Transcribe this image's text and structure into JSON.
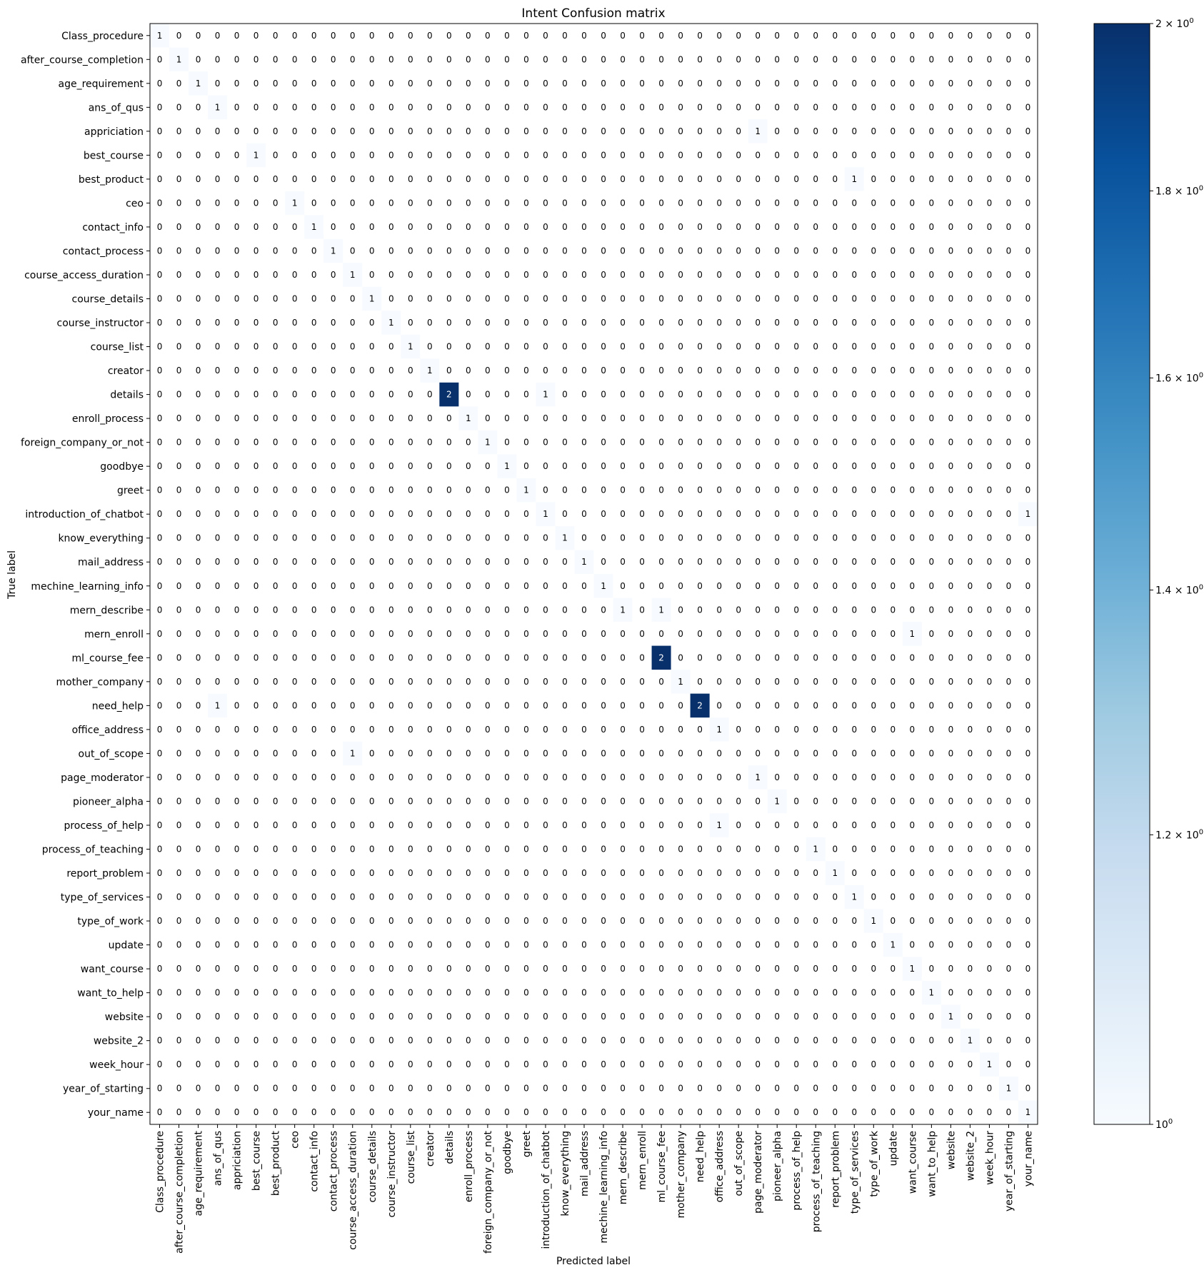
{
  "chart_data": {
    "type": "heatmap",
    "title": "Intent Confusion matrix",
    "xlabel": "Predicted label",
    "ylabel": "True label",
    "labels": [
      "Class_procedure",
      "after_course_completion",
      "age_requirement",
      "ans_of_qus",
      "appriciation",
      "best_course",
      "best_product",
      "ceo",
      "contact_info",
      "contact_process",
      "course_access_duration",
      "course_details",
      "course_instructor",
      "course_list",
      "creator",
      "details",
      "enroll_process",
      "foreign_company_or_not",
      "goodbye",
      "greet",
      "introduction_of_chatbot",
      "know_everything",
      "mail_address",
      "mechine_learning_info",
      "mern_describe",
      "mern_enroll",
      "ml_course_fee",
      "mother_company",
      "need_help",
      "office_address",
      "out_of_scope",
      "page_moderator",
      "pioneer_alpha",
      "process_of_help",
      "process_of_teaching",
      "report_problem",
      "type_of_services",
      "type_of_work",
      "update",
      "want_course",
      "want_to_help",
      "website",
      "website_2",
      "week_hour",
      "year_of_starting",
      "your_name"
    ],
    "nonzero_cells": [
      [
        0,
        0,
        1
      ],
      [
        1,
        1,
        1
      ],
      [
        2,
        2,
        1
      ],
      [
        3,
        3,
        1
      ],
      [
        4,
        31,
        1
      ],
      [
        5,
        5,
        1
      ],
      [
        6,
        36,
        1
      ],
      [
        7,
        7,
        1
      ],
      [
        8,
        8,
        1
      ],
      [
        9,
        9,
        1
      ],
      [
        10,
        10,
        1
      ],
      [
        11,
        11,
        1
      ],
      [
        12,
        12,
        1
      ],
      [
        13,
        13,
        1
      ],
      [
        14,
        14,
        1
      ],
      [
        15,
        15,
        2
      ],
      [
        15,
        20,
        1
      ],
      [
        16,
        16,
        1
      ],
      [
        17,
        17,
        1
      ],
      [
        18,
        18,
        1
      ],
      [
        19,
        19,
        1
      ],
      [
        20,
        20,
        1
      ],
      [
        20,
        45,
        1
      ],
      [
        21,
        21,
        1
      ],
      [
        22,
        22,
        1
      ],
      [
        23,
        23,
        1
      ],
      [
        24,
        24,
        1
      ],
      [
        24,
        26,
        1
      ],
      [
        25,
        39,
        1
      ],
      [
        26,
        26,
        2
      ],
      [
        27,
        27,
        1
      ],
      [
        28,
        3,
        1
      ],
      [
        28,
        28,
        2
      ],
      [
        29,
        29,
        1
      ],
      [
        30,
        10,
        1
      ],
      [
        31,
        31,
        1
      ],
      [
        32,
        32,
        1
      ],
      [
        33,
        29,
        1
      ],
      [
        34,
        34,
        1
      ],
      [
        35,
        35,
        1
      ],
      [
        36,
        36,
        1
      ],
      [
        37,
        37,
        1
      ],
      [
        38,
        38,
        1
      ],
      [
        39,
        39,
        1
      ],
      [
        40,
        40,
        1
      ],
      [
        41,
        41,
        1
      ],
      [
        42,
        42,
        1
      ],
      [
        43,
        43,
        1
      ],
      [
        44,
        44,
        1
      ],
      [
        45,
        45,
        1
      ]
    ],
    "colorbar": {
      "scale": "log",
      "range": [
        1,
        2
      ],
      "colormap": "Blues",
      "ticks": [
        {
          "value": 1.0,
          "base": "10",
          "exp": "0",
          "coef": ""
        },
        {
          "value": 1.2,
          "base": "10",
          "exp": "0",
          "coef": "1.2 × "
        },
        {
          "value": 1.4,
          "base": "10",
          "exp": "0",
          "coef": "1.4 × "
        },
        {
          "value": 1.6,
          "base": "10",
          "exp": "0",
          "coef": "1.6 × "
        },
        {
          "value": 1.8,
          "base": "10",
          "exp": "0",
          "coef": "1.8 × "
        },
        {
          "value": 2.0,
          "base": "10",
          "exp": "0",
          "coef": "2 × "
        }
      ]
    },
    "grid": false
  }
}
